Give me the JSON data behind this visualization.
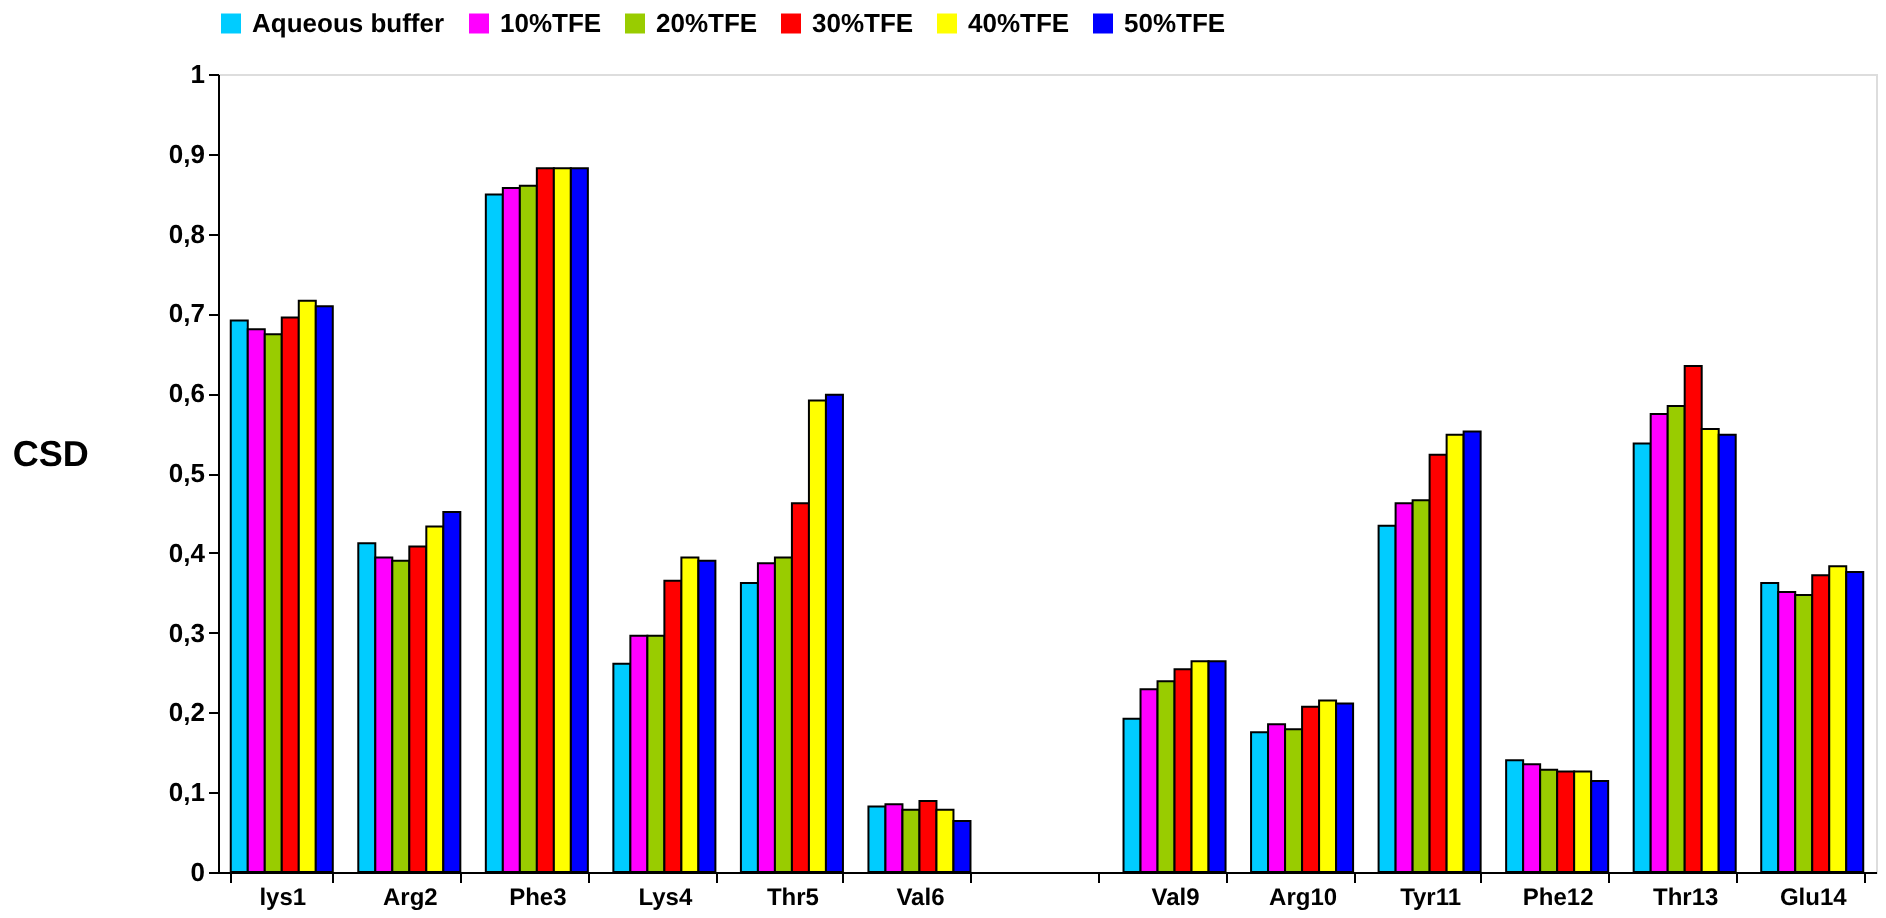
{
  "chart_data": {
    "type": "bar",
    "ylabel": "CSD",
    "categories": [
      "lys1",
      "Arg2",
      "Phe3",
      "Lys4",
      "Thr5",
      "Val6",
      null,
      "Val9",
      "Arg10",
      "Tyr11",
      "Phe12",
      "Thr13",
      "Glu14"
    ],
    "series": [
      {
        "name": "Aqueous buffer",
        "color": "#00ccff",
        "values": [
          0.691,
          0.412,
          0.849,
          0.261,
          0.362,
          0.082,
          null,
          0.192,
          0.175,
          0.434,
          0.14,
          0.537,
          0.362
        ]
      },
      {
        "name": "10%TFE",
        "color": "#ff00ff",
        "values": [
          0.68,
          0.394,
          0.857,
          0.296,
          0.387,
          0.085,
          null,
          0.229,
          0.185,
          0.462,
          0.135,
          0.574,
          0.351
        ]
      },
      {
        "name": "20%TFE",
        "color": "#99cc00",
        "values": [
          0.674,
          0.39,
          0.86,
          0.296,
          0.394,
          0.078,
          null,
          0.239,
          0.179,
          0.466,
          0.128,
          0.584,
          0.347
        ]
      },
      {
        "name": "30%TFE",
        "color": "#ff0000",
        "values": [
          0.695,
          0.408,
          0.882,
          0.365,
          0.462,
          0.089,
          null,
          0.254,
          0.207,
          0.523,
          0.126,
          0.634,
          0.372
        ]
      },
      {
        "name": "40%TFE",
        "color": "#ffff00",
        "values": [
          0.716,
          0.433,
          0.882,
          0.394,
          0.591,
          0.078,
          null,
          0.264,
          0.215,
          0.548,
          0.126,
          0.555,
          0.383
        ]
      },
      {
        "name": "50%TFE",
        "color": "#0000ff",
        "values": [
          0.709,
          0.451,
          0.882,
          0.39,
          0.598,
          0.064,
          null,
          0.264,
          0.211,
          0.552,
          0.114,
          0.548,
          0.376
        ]
      }
    ],
    "ylim": [
      0,
      1
    ],
    "yticks": [
      0,
      {
        "value": 0.1,
        "label": "0,1"
      },
      {
        "value": 0.2,
        "label": "0,2"
      },
      {
        "value": 0.3,
        "label": "0,3"
      },
      {
        "value": 0.4,
        "label": "0,4"
      },
      {
        "value": 0.5,
        "label": "0,5"
      },
      {
        "value": 0.6,
        "label": "0,6"
      },
      {
        "value": 0.7,
        "label": "0,7"
      },
      {
        "value": 0.8,
        "label": "0,8"
      },
      {
        "value": 0.9,
        "label": "0,9"
      },
      1
    ],
    "grid": false,
    "legend": "top"
  }
}
